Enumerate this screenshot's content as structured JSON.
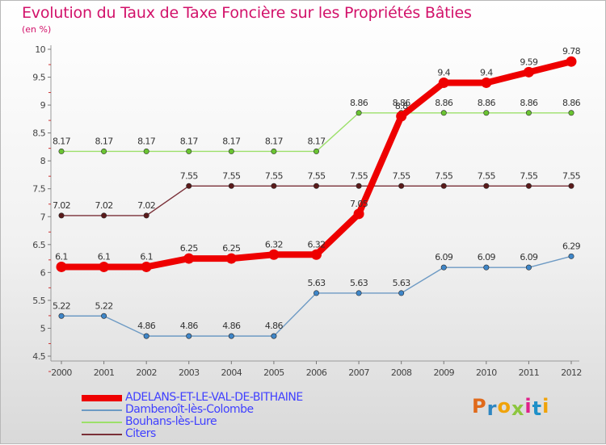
{
  "title": "Evolution du Taux de Taxe Foncière sur les Propriétés Bâties",
  "subtitle": "(en %)",
  "logo": {
    "letters": [
      "P",
      "r",
      "o",
      "x",
      "i",
      "t",
      "i"
    ],
    "colors": [
      "#e06a1b",
      "#2e86c1",
      "#f0a30a",
      "#8cc63f",
      "#e0218a",
      "#1e90c8",
      "#f0a30a"
    ]
  },
  "chart_data": {
    "type": "line",
    "title": "Evolution du Taux de Taxe Foncière sur les Propriétés Bâties",
    "ylabel": "(en %)",
    "xlabel": "",
    "ylim": [
      4.5,
      10
    ],
    "yticks": [
      "4.5",
      "5",
      "5.5",
      "6",
      "6.5",
      "7",
      "7.5",
      "8",
      "8.5",
      "9",
      "9.5",
      "10"
    ],
    "grid": false,
    "legend_position": "bottom-left",
    "categories": [
      "2000",
      "2001",
      "2002",
      "2003",
      "2004",
      "2005",
      "2006",
      "2007",
      "2008",
      "2009",
      "2010",
      "2011",
      "2012"
    ],
    "series": [
      {
        "name": "Dambenoît-lès-Colombe",
        "color": "#6d9ac4",
        "marker": "#3f86c8",
        "values": [
          5.22,
          5.22,
          4.86,
          4.86,
          4.86,
          4.86,
          5.63,
          5.63,
          5.63,
          6.09,
          6.09,
          6.09,
          6.29
        ],
        "labels": [
          "5.22",
          "5.22",
          "4.86",
          "4.86",
          "4.86",
          "4.86",
          "5.63",
          "5.63",
          "5.63",
          "6.09",
          "6.09",
          "6.09",
          "6.29"
        ]
      },
      {
        "name": "Citers",
        "color": "#7a3038",
        "marker": "#5a1a1a",
        "values": [
          7.02,
          7.02,
          7.02,
          7.55,
          7.55,
          7.55,
          7.55,
          7.55,
          7.55,
          7.55,
          7.55,
          7.55,
          7.55
        ],
        "labels": [
          "7.02",
          "7.02",
          "7.02",
          "7.55",
          "7.55",
          "7.55",
          "7.55",
          "7.55",
          "7.55",
          "7.55",
          "7.55",
          "7.55",
          "7.55"
        ]
      },
      {
        "name": "Bouhans-lès-Lure",
        "color": "#9ce06a",
        "marker": "#6ac432",
        "values": [
          8.17,
          8.17,
          8.17,
          8.17,
          8.17,
          8.17,
          8.17,
          8.86,
          8.86,
          8.86,
          8.86,
          8.86,
          8.86
        ],
        "labels": [
          "8.17",
          "8.17",
          "8.17",
          "8.17",
          "8.17",
          "8.17",
          "8.17",
          "8.86",
          "8.86",
          "8.86",
          "8.86",
          "8.86",
          "8.86"
        ]
      },
      {
        "name": "ADELANS-ET-LE-VAL-DE-BITHAINE",
        "color": "#ee0000",
        "marker": "#ee0000",
        "values": [
          6.1,
          6.1,
          6.1,
          6.25,
          6.25,
          6.32,
          6.32,
          7.05,
          8.8,
          9.4,
          9.4,
          9.59,
          9.78
        ],
        "labels": [
          "6.1",
          "6.1",
          "6.1",
          "6.25",
          "6.25",
          "6.32",
          "6.32",
          "7.05",
          "8.8",
          "9.4",
          "9.4",
          "9.59",
          "9.78"
        ]
      }
    ],
    "legend_order": [
      "ADELANS-ET-LE-VAL-DE-BITHAINE",
      "Dambenoît-lès-Colombe",
      "Bouhans-lès-Lure",
      "Citers"
    ]
  }
}
